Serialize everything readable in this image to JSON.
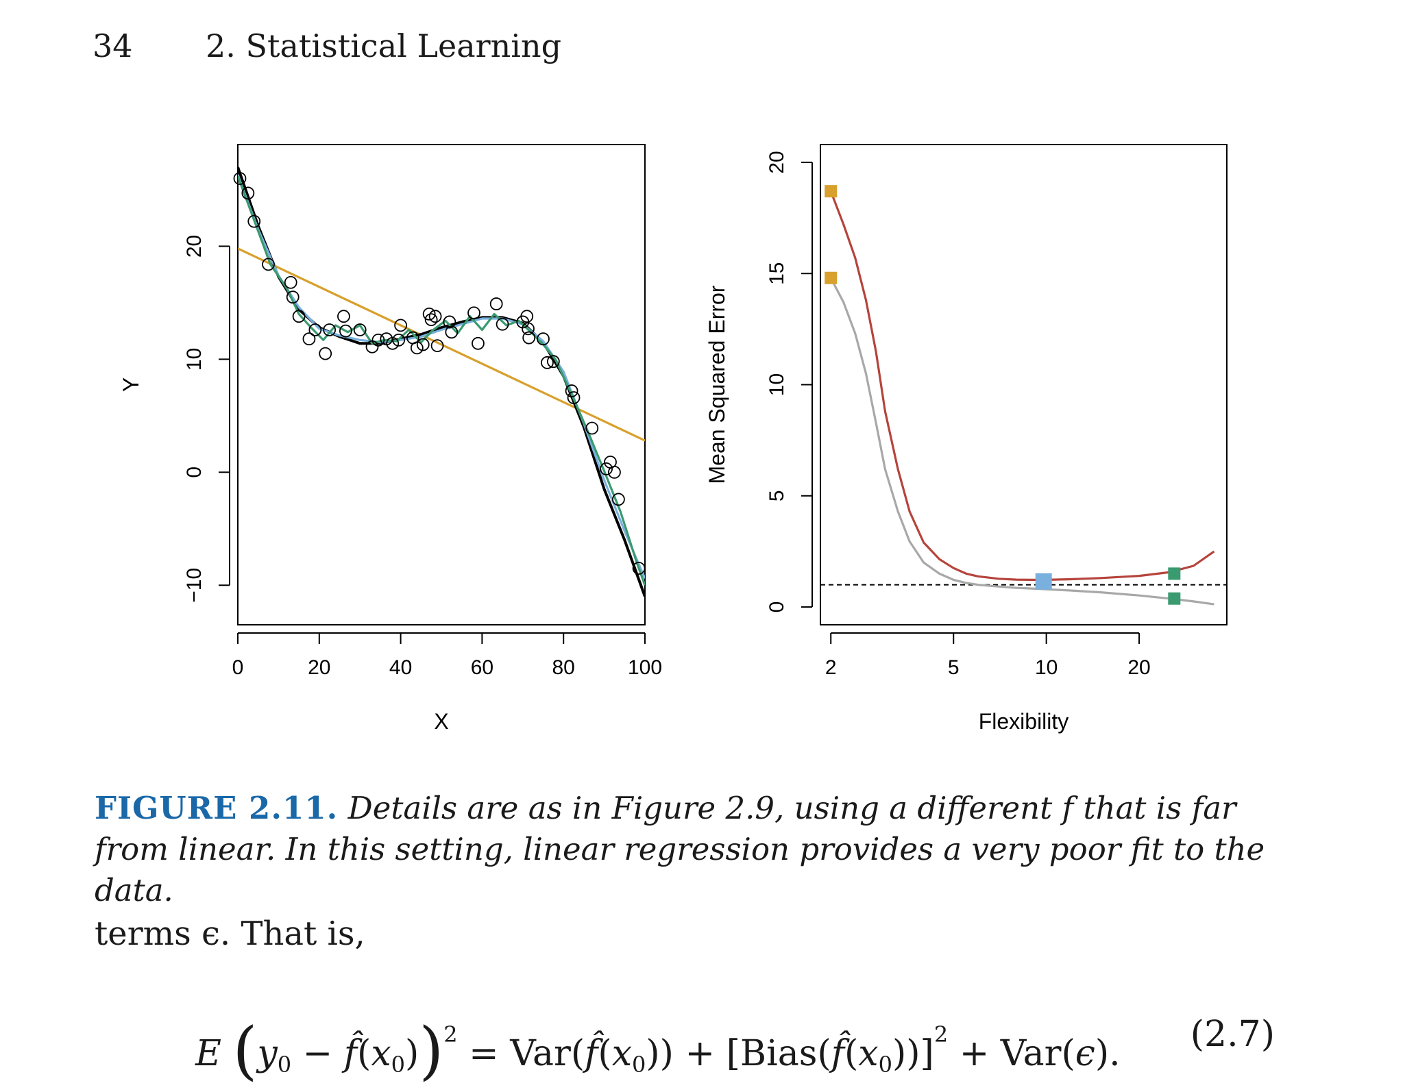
{
  "header": {
    "page_number": "34",
    "chapter": "2.  Statistical Learning"
  },
  "figure": {
    "caption_label": "FIGURE 2.11.",
    "caption_text": "Details are as in Figure 2.9, using a different f that is far from linear. In this setting, linear regression provides a very poor fit to the data."
  },
  "chart_data": [
    {
      "type": "scatter",
      "xlabel": "X",
      "ylabel": "Y",
      "xlim": [
        0,
        100
      ],
      "ylim": [
        -13.5,
        29
      ],
      "x_ticks": [
        0,
        20,
        40,
        60,
        80,
        100
      ],
      "y_ticks": [
        -10,
        0,
        10,
        20
      ],
      "points": [
        [
          0.5,
          26
        ],
        [
          2.5,
          24.7
        ],
        [
          4,
          22.2
        ],
        [
          7.5,
          18.4
        ],
        [
          13,
          16.8
        ],
        [
          13.5,
          15.5
        ],
        [
          15,
          13.8
        ],
        [
          17.5,
          11.8
        ],
        [
          19,
          12.6
        ],
        [
          21.5,
          10.5
        ],
        [
          22.5,
          12.6
        ],
        [
          26,
          13.8
        ],
        [
          26.5,
          12.5
        ],
        [
          30,
          12.6
        ],
        [
          33,
          11.1
        ],
        [
          34.5,
          11.7
        ],
        [
          36.5,
          11.8
        ],
        [
          38,
          11.4
        ],
        [
          39.5,
          11.7
        ],
        [
          40,
          13
        ],
        [
          43,
          11.9
        ],
        [
          44,
          11
        ],
        [
          45.5,
          11.3
        ],
        [
          47,
          14
        ],
        [
          47.5,
          13.5
        ],
        [
          48.5,
          13.8
        ],
        [
          49,
          11.2
        ],
        [
          52,
          13.3
        ],
        [
          52.5,
          12.4
        ],
        [
          58,
          14.1
        ],
        [
          59,
          11.4
        ],
        [
          63.5,
          14.9
        ],
        [
          65,
          13.1
        ],
        [
          70,
          13.3
        ],
        [
          71,
          13.8
        ],
        [
          71.3,
          12.7
        ],
        [
          71.5,
          11.9
        ],
        [
          75,
          11.8
        ],
        [
          76,
          9.7
        ],
        [
          77.5,
          9.8
        ],
        [
          82,
          7.2
        ],
        [
          82.5,
          6.6
        ],
        [
          87,
          3.9
        ],
        [
          90.5,
          0.3
        ],
        [
          91.5,
          0.9
        ],
        [
          92.5,
          0
        ],
        [
          93.5,
          -2.4
        ],
        [
          98.5,
          -8.5
        ]
      ],
      "series": [
        {
          "color": "#d8a02c",
          "x": [
            0,
            100
          ],
          "y": [
            19.8,
            2.8
          ]
        },
        {
          "color": "#000000",
          "x": [
            0,
            5,
            10,
            15,
            20,
            25,
            30,
            35,
            40,
            45,
            50,
            55,
            60,
            65,
            70,
            75,
            80,
            85,
            90,
            95,
            100
          ],
          "y": [
            27,
            21.8,
            17.3,
            14.4,
            12.8,
            12,
            11.4,
            11.4,
            11.8,
            12.2,
            12.8,
            13.3,
            13.7,
            13.7,
            13.2,
            11.5,
            8.5,
            4,
            -1.5,
            -6,
            -11
          ]
        },
        {
          "color": "#7ab0de",
          "x": [
            0,
            5,
            10,
            15,
            20,
            25,
            30,
            35,
            40,
            45,
            50,
            55,
            60,
            65,
            70,
            75,
            80,
            85,
            90,
            95,
            100
          ],
          "y": [
            26.3,
            21.5,
            17.4,
            14.6,
            12.7,
            12.1,
            11.7,
            11.5,
            11.7,
            12,
            12.6,
            13.1,
            13.6,
            13.6,
            13.1,
            11.6,
            8.9,
            4.3,
            -0.7,
            -5.2,
            -9.4
          ]
        },
        {
          "color": "#3a9a70",
          "x": [
            0,
            4,
            8,
            12,
            15,
            18,
            21,
            24,
            27,
            30,
            33,
            36,
            39,
            42,
            45,
            48,
            51,
            54,
            57,
            60,
            63,
            66,
            69,
            72,
            75,
            78,
            82,
            86,
            90,
            94,
            98,
            100
          ],
          "y": [
            26.2,
            22.3,
            18.4,
            16.3,
            14,
            12.8,
            11.7,
            13,
            12.4,
            13,
            11.4,
            11.7,
            11.6,
            12.6,
            11.5,
            12.6,
            13.4,
            12.3,
            13.8,
            12.6,
            14,
            13,
            13.4,
            12.4,
            11.3,
            10,
            6.9,
            3.6,
            0.1,
            -3.5,
            -8,
            -10
          ]
        }
      ]
    },
    {
      "type": "line",
      "xlabel": "Flexibility",
      "ylabel": "Mean Squared Error",
      "x_scale": "log",
      "xlim": [
        1.85,
        38.5
      ],
      "ylim": [
        -0.8,
        20.8
      ],
      "x_ticks": [
        2,
        5,
        10,
        20
      ],
      "y_ticks": [
        0,
        5,
        10,
        15,
        20
      ],
      "reference_line": {
        "y": 1,
        "style": "dashed"
      },
      "series": [
        {
          "color": "#b5443c",
          "x": [
            2,
            2.2,
            2.4,
            2.6,
            2.8,
            3,
            3.3,
            3.6,
            4,
            4.5,
            5,
            5.5,
            6,
            7,
            8,
            9,
            10,
            12,
            15,
            20,
            25,
            30,
            35
          ],
          "y": [
            18.7,
            17.2,
            15.7,
            13.8,
            11.5,
            8.8,
            6.2,
            4.3,
            2.9,
            2.15,
            1.75,
            1.5,
            1.38,
            1.27,
            1.23,
            1.22,
            1.22,
            1.25,
            1.3,
            1.4,
            1.56,
            1.85,
            2.5
          ]
        },
        {
          "color": "#a8a8a8",
          "x": [
            2,
            2.2,
            2.4,
            2.6,
            2.8,
            3,
            3.3,
            3.6,
            4,
            4.5,
            5,
            5.5,
            6,
            7,
            8,
            9,
            10,
            12,
            15,
            20,
            25,
            30,
            35
          ],
          "y": [
            14.8,
            13.7,
            12.3,
            10.5,
            8.3,
            6.2,
            4.3,
            2.95,
            2,
            1.5,
            1.22,
            1.08,
            1,
            0.92,
            0.86,
            0.83,
            0.8,
            0.74,
            0.66,
            0.52,
            0.38,
            0.25,
            0.12
          ]
        }
      ],
      "markers": [
        {
          "x": 2,
          "y": 18.7,
          "color": "#d8a02c"
        },
        {
          "x": 2,
          "y": 14.8,
          "color": "#d8a02c"
        },
        {
          "x": 9.8,
          "y": 1.15,
          "color": "#7ab0de",
          "large": true
        },
        {
          "x": 26,
          "y": 1.5,
          "color": "#3a9a70"
        },
        {
          "x": 26,
          "y": 0.38,
          "color": "#3a9a70"
        }
      ]
    }
  ],
  "body_text": "terms ϵ. That is,",
  "equation": {
    "number": "(2.7)"
  }
}
